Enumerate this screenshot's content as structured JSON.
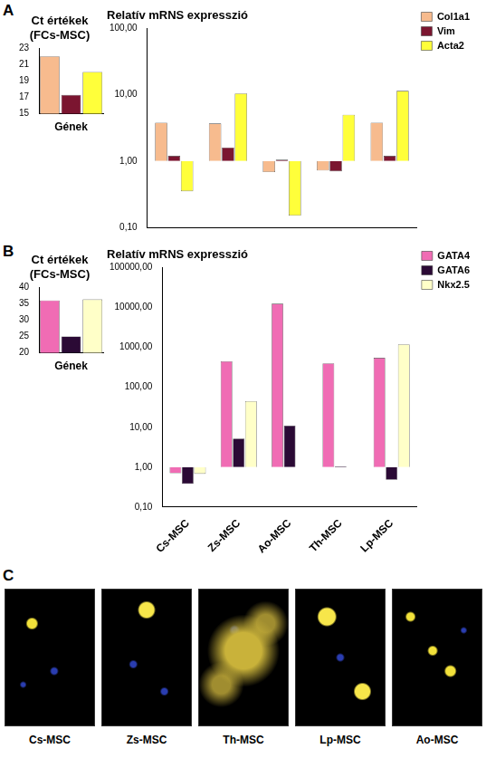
{
  "chart_data": [
    {
      "type": "bar",
      "annotation": "A",
      "title": [
        "Ct értékek",
        "(FCs-MSC)"
      ],
      "x_label": "Gének",
      "categories": [
        null
      ],
      "series": [
        {
          "name": "Col1a1",
          "color": "#f7bb8e",
          "values": [
            22
          ]
        },
        {
          "name": "Vim",
          "color": "#7b1530",
          "values": [
            17.3
          ]
        },
        {
          "name": "Acta2",
          "color": "#ffff3a",
          "values": [
            20.1
          ]
        }
      ],
      "ylim": [
        15,
        23
      ],
      "yticks": [
        15,
        17,
        19,
        21,
        23
      ],
      "grid": false,
      "tick_labels": "y"
    },
    {
      "type": "bar",
      "title": "Relatív mRNS expresszió",
      "categories": [
        null,
        null,
        null,
        null,
        null
      ],
      "series": [
        {
          "name": "Col1a1",
          "color": "#f7bb8e",
          "values": [
            3.8,
            3.7,
            0.68,
            0.72,
            3.8
          ]
        },
        {
          "name": "Vim",
          "color": "#7b1530",
          "values": [
            1.2,
            1.6,
            1.05,
            0.7,
            1.2
          ]
        },
        {
          "name": "Acta2",
          "color": "#ffff3a",
          "values": [
            0.35,
            10.5,
            0.15,
            5.0,
            11.5
          ]
        }
      ],
      "log": "y",
      "ylim": [
        0.1,
        100
      ],
      "yticks": [
        {
          "value": 0.1,
          "label": "0,10"
        },
        {
          "value": 1,
          "label": "1,00"
        },
        {
          "value": 10,
          "label": "10,00"
        },
        {
          "value": 100,
          "label": "100,00"
        }
      ],
      "grid": false,
      "legend": "top-right",
      "tick_labels": "y"
    },
    {
      "type": "bar",
      "annotation": "B",
      "title": [
        "Ct értékek",
        "(FCs-MSC)"
      ],
      "x_label": "Gének",
      "categories": [
        null
      ],
      "series": [
        {
          "name": "GATA4",
          "color": "#f06cb4",
          "values": [
            36
          ]
        },
        {
          "name": "GATA6",
          "color": "#2b0a35",
          "values": [
            25
          ]
        },
        {
          "name": "Nkx2.5",
          "color": "#ffffc8",
          "values": [
            36.3
          ]
        }
      ],
      "ylim": [
        20,
        40
      ],
      "yticks": [
        20,
        25,
        30,
        35,
        40
      ],
      "grid": false,
      "tick_labels": "y"
    },
    {
      "type": "bar",
      "title": "Relatív mRNS expresszió",
      "categories": [
        "Cs-MSC",
        "Zs-MSC",
        "Ao-MSC",
        "Th-MSC",
        "Lp-MSC"
      ],
      "series": [
        {
          "name": "GATA4",
          "color": "#f06cb4",
          "values": [
            0.7,
            450,
            12500,
            400,
            550
          ]
        },
        {
          "name": "GATA6",
          "color": "#2b0a35",
          "values": [
            0.38,
            5.2,
            11,
            1.05,
            0.48
          ]
        },
        {
          "name": "Nkx2.5",
          "color": "#ffffc8",
          "values": [
            0.68,
            45,
            null,
            null,
            1200
          ]
        }
      ],
      "log": "y",
      "ylim": [
        0.1,
        100000
      ],
      "yticks": [
        {
          "value": 0.1,
          "label": "0,10"
        },
        {
          "value": 1,
          "label": "1,00"
        },
        {
          "value": 10,
          "label": "10,00"
        },
        {
          "value": 100,
          "label": "100,00"
        },
        {
          "value": 1000,
          "label": "1000,00"
        },
        {
          "value": 10000,
          "label": "10000,00"
        },
        {
          "value": 100000,
          "label": "100000,00"
        }
      ],
      "grid": false,
      "legend": "top-right",
      "tick_labels": true
    }
  ],
  "images": {
    "annotation": "C",
    "captions": [
      "Cs-MSC",
      "Zs-MSC",
      "Th-MSC",
      "Lp-MSC",
      "Ao-MSC"
    ]
  }
}
